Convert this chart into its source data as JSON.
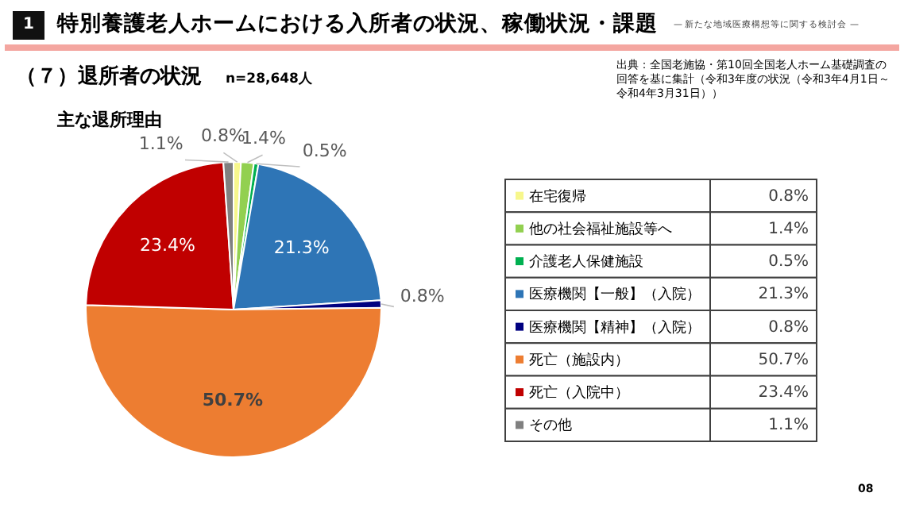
{
  "chart_data": {
    "type": "pie",
    "title": "主な退所理由",
    "categories": [
      "在宅復帰",
      "他の社会福祉施設等へ",
      "介護老人保健施設",
      "医療機関【一般】（入院）",
      "医療機関【精神】（入院）",
      "死亡（施設内）",
      "死亡（入院中）",
      "その他"
    ],
    "values": [
      0.8,
      1.4,
      0.5,
      21.3,
      0.8,
      50.7,
      23.4,
      1.1
    ],
    "colors": [
      "#f7f78c",
      "#92d050",
      "#00b050",
      "#2e75b6",
      "#000080",
      "#ed7d31",
      "#c00000",
      "#808080"
    ],
    "value_labels": [
      "0.8%",
      "1.4%",
      "0.5%",
      "21.3%",
      "0.8%",
      "50.7%",
      "23.4%",
      "1.1%"
    ],
    "legend": "right",
    "annotations": [
      "1",
      "特別養護老人ホームにおける入所者の状況、稼働状況・課題",
      "— 新たな地域医療構想等に関する検討会 —",
      "（７）退所者の状況",
      "n=28,648人",
      "出典：全国老施協・第10回全国老人ホーム基礎調査の回答を基に集計（令和3年度の状況（令和3年4月1日～令和4年3月31日））",
      "08"
    ]
  }
}
